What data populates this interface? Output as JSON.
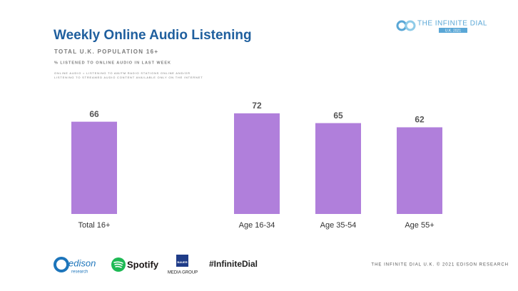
{
  "chart_data": {
    "type": "bar",
    "title": "Weekly Online Audio Listening",
    "subtitle": "TOTAL U.K. POPULATION 16+",
    "y_label": "% LISTENED TO ONLINE AUDIO IN LAST WEEK",
    "notes": [
      "ONLINE AUDIO = LISTENING TO AM/FM RADIO STATIONS ONLINE AND/OR",
      "LISTENING TO STREAMED AUDIO CONTENT AVAILABLE ONLY ON THE INTERNET"
    ],
    "categories": [
      "Total 16+",
      null,
      "Age 16-34",
      "Age 35-54",
      "Age 55+"
    ],
    "values": [
      66,
      null,
      72,
      65,
      62
    ],
    "color": "#b07fdb",
    "ylim": [
      0,
      100
    ]
  },
  "header": {
    "logo_title": "THE INFINITE DIAL",
    "logo_sub": "U.K. 2021"
  },
  "footer": {
    "edison": "edison",
    "edison_sub": "research",
    "spotify": "Spotify",
    "bauer": "BAUER",
    "bauer_sub": "MEDIA GROUP",
    "hashtag": "#InfiniteDial",
    "credit": "THE INFINITE DIAL U.K. © 2021 EDISON RESEARCH"
  }
}
